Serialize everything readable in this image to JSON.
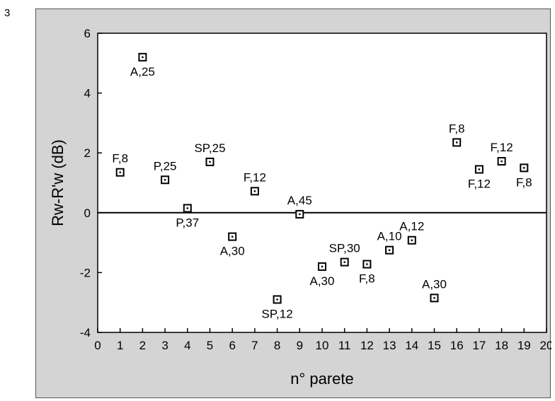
{
  "figure_number": "3",
  "chart_data": {
    "type": "scatter",
    "title": "",
    "xlabel": "n° parete",
    "ylabel": "Rw-R'w (dB)",
    "xlim": [
      0,
      20
    ],
    "ylim": [
      -4,
      6
    ],
    "x_ticks": [
      0,
      1,
      2,
      3,
      4,
      5,
      6,
      7,
      8,
      9,
      10,
      11,
      12,
      13,
      14,
      15,
      16,
      17,
      18,
      19,
      20
    ],
    "y_ticks": [
      -4,
      -2,
      0,
      2,
      4,
      6
    ],
    "zero_line": true,
    "grid": false,
    "marker": "square-dot",
    "points": [
      {
        "x": 1,
        "y": 1.35,
        "label": "F,8",
        "label_pos": "above"
      },
      {
        "x": 2,
        "y": 5.2,
        "label": "A,25",
        "label_pos": "below"
      },
      {
        "x": 3,
        "y": 1.1,
        "label": "P,25",
        "label_pos": "above"
      },
      {
        "x": 4,
        "y": 0.15,
        "label": "P,37",
        "label_pos": "below"
      },
      {
        "x": 5,
        "y": 1.7,
        "label": "SP,25",
        "label_pos": "above"
      },
      {
        "x": 6,
        "y": -0.8,
        "label": "A,30",
        "label_pos": "below"
      },
      {
        "x": 7,
        "y": 0.72,
        "label": "F,12",
        "label_pos": "above"
      },
      {
        "x": 8,
        "y": -2.9,
        "label": "SP,12",
        "label_pos": "below"
      },
      {
        "x": 9,
        "y": -0.05,
        "label": "A,45",
        "label_pos": "above"
      },
      {
        "x": 10,
        "y": -1.8,
        "label": "A,30",
        "label_pos": "below"
      },
      {
        "x": 11,
        "y": -1.65,
        "label": "SP,30",
        "label_pos": "above"
      },
      {
        "x": 12,
        "y": -1.72,
        "label": "F,8",
        "label_pos": "below"
      },
      {
        "x": 13,
        "y": -1.25,
        "label": "A,10",
        "label_pos": "above"
      },
      {
        "x": 14,
        "y": -0.92,
        "label": "A,12",
        "label_pos": "above"
      },
      {
        "x": 15,
        "y": -2.85,
        "label": "A,30",
        "label_pos": "above"
      },
      {
        "x": 16,
        "y": 2.35,
        "label": "F,8",
        "label_pos": "above"
      },
      {
        "x": 17,
        "y": 1.45,
        "label": "F,12",
        "label_pos": "below"
      },
      {
        "x": 18,
        "y": 1.72,
        "label": "F,12",
        "label_pos": "above"
      },
      {
        "x": 19,
        "y": 1.5,
        "label": "F,8",
        "label_pos": "below"
      }
    ]
  }
}
